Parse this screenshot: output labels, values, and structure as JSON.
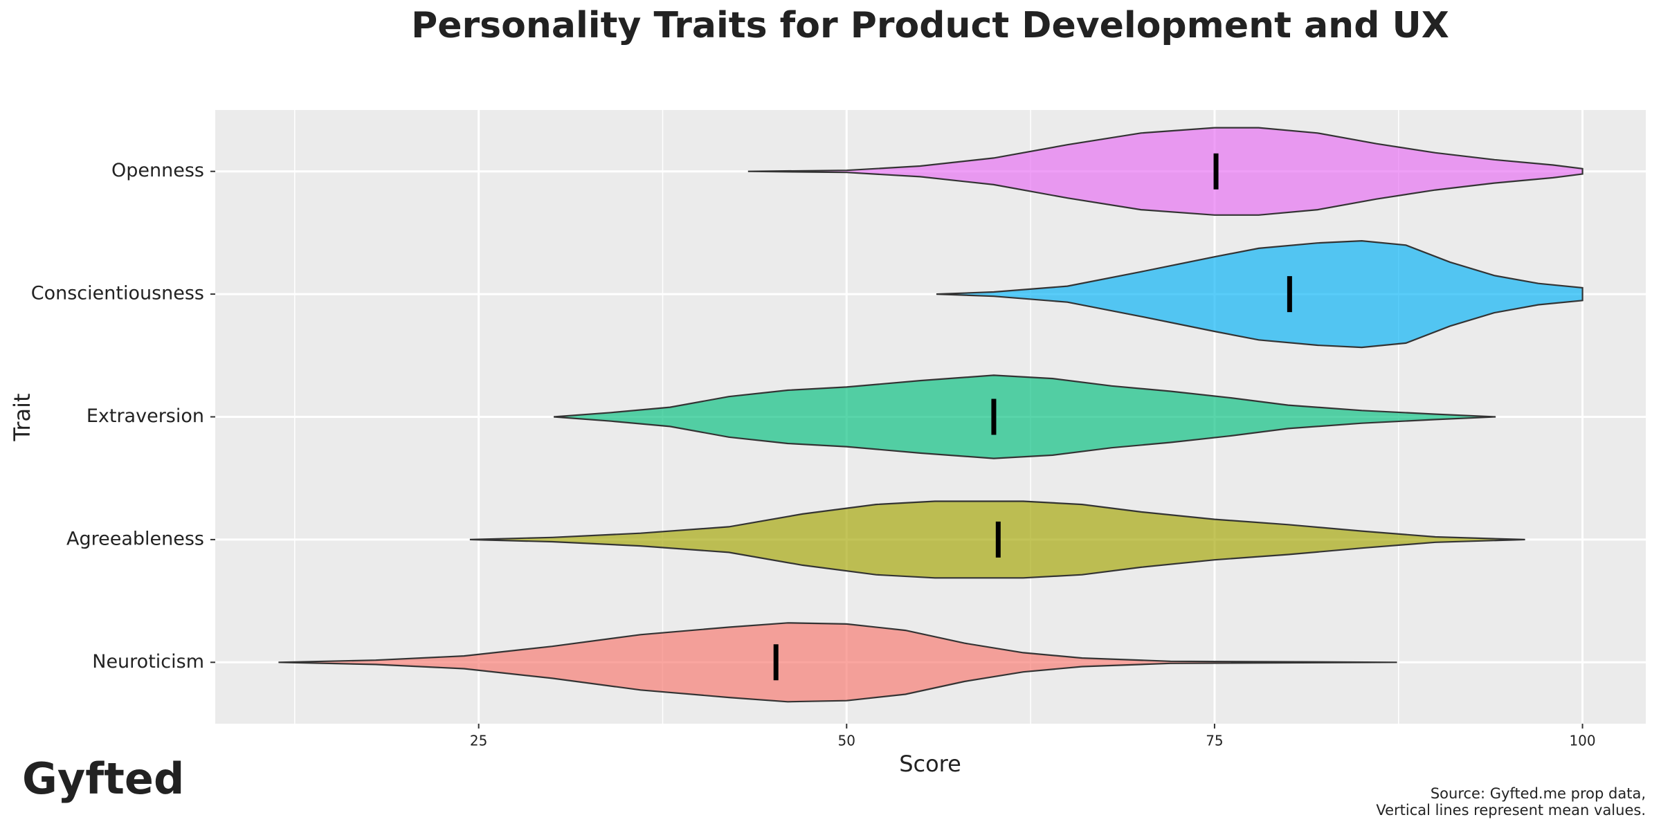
{
  "chart_data": {
    "type": "violin",
    "title": "Personality Traits for Product Development and UX",
    "x_label": "Score",
    "y_label": "Trait",
    "caption": [
      "Source: Gyfted.me prop data,",
      "Vertical lines represent mean values."
    ],
    "logo": "Gyfted",
    "xlim": [
      7.1,
      104.3
    ],
    "xticks": [
      25,
      50,
      75,
      100
    ],
    "xminor": [
      12.5,
      37.5,
      62.5,
      87.5
    ],
    "grid": true,
    "series": [
      {
        "name": "Openness",
        "color": "#E76BF3",
        "mean": 75.1,
        "density": {
          "x": [
            43.3,
            50,
            55,
            60,
            65,
            70,
            75,
            78,
            82,
            86,
            90,
            94,
            98,
            100
          ],
          "width": [
            0,
            0.02,
            0.1,
            0.25,
            0.5,
            0.72,
            0.82,
            0.82,
            0.72,
            0.52,
            0.35,
            0.22,
            0.12,
            0.05
          ]
        }
      },
      {
        "name": "Conscientiousness",
        "color": "#00B0F6",
        "mean": 80.1,
        "density": {
          "x": [
            56.1,
            60,
            65,
            70,
            75,
            78,
            82,
            85,
            88,
            91,
            94,
            97,
            100
          ],
          "width": [
            0,
            0.04,
            0.15,
            0.42,
            0.7,
            0.86,
            0.96,
            1.0,
            0.92,
            0.6,
            0.35,
            0.2,
            0.12
          ]
        }
      },
      {
        "name": "Extraversion",
        "color": "#00BF7D",
        "mean": 60.0,
        "density": {
          "x": [
            30.1,
            34,
            38,
            42,
            46,
            50,
            55,
            60,
            64,
            68,
            72,
            76,
            80,
            85,
            90,
            94.1
          ],
          "width": [
            0,
            0.08,
            0.18,
            0.38,
            0.5,
            0.56,
            0.68,
            0.78,
            0.72,
            0.58,
            0.48,
            0.36,
            0.22,
            0.12,
            0.05,
            0
          ]
        }
      },
      {
        "name": "Agreeableness",
        "color": "#A3A500",
        "mean": 60.3,
        "density": {
          "x": [
            24.4,
            30,
            36,
            42,
            47,
            52,
            56,
            62,
            66,
            70,
            75,
            80,
            85,
            90,
            96.1
          ],
          "width": [
            0,
            0.04,
            0.12,
            0.24,
            0.48,
            0.66,
            0.72,
            0.72,
            0.66,
            0.52,
            0.38,
            0.28,
            0.16,
            0.05,
            0
          ]
        }
      },
      {
        "name": "Neuroticism",
        "color": "#F8766D",
        "mean": 45.2,
        "density": {
          "x": [
            11.4,
            18,
            24,
            30,
            36,
            42,
            46,
            50,
            54,
            58,
            62,
            66,
            72,
            87.4
          ],
          "width": [
            0,
            0.04,
            0.12,
            0.3,
            0.52,
            0.66,
            0.74,
            0.72,
            0.6,
            0.36,
            0.18,
            0.08,
            0.02,
            0
          ]
        }
      }
    ]
  }
}
